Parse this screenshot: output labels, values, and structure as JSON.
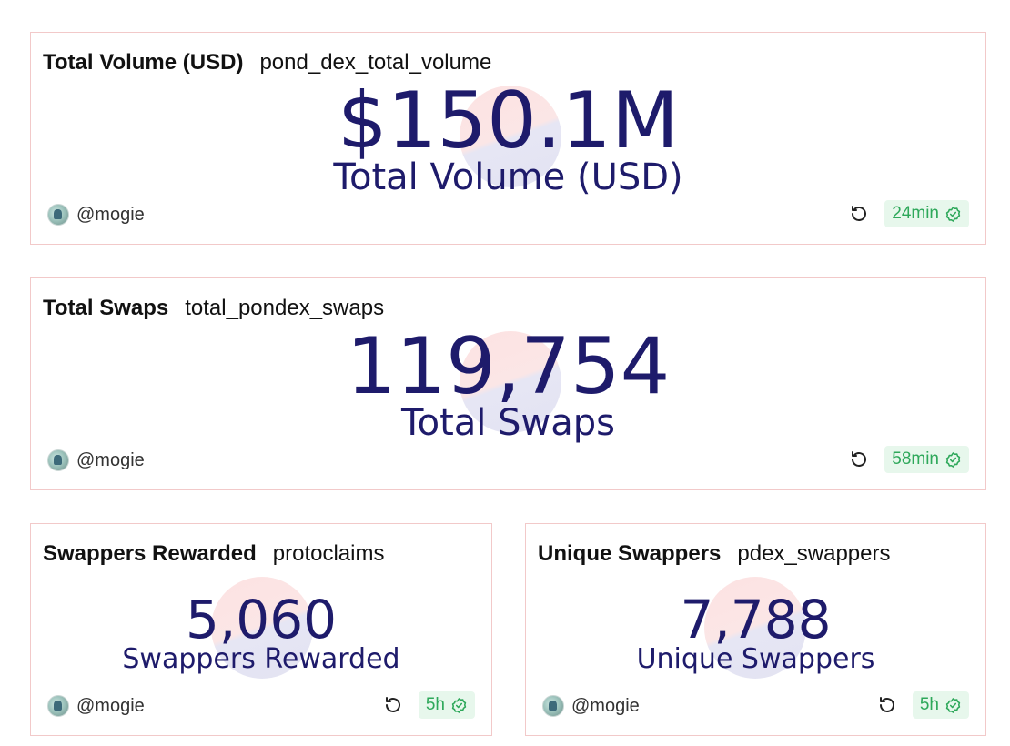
{
  "cards": [
    {
      "title": "Total Volume (USD)",
      "query": "pond_dex_total_volume",
      "value": "$150.1M",
      "label": "Total Volume (USD)",
      "author": "@mogie",
      "refresh_age": "24min"
    },
    {
      "title": "Total Swaps",
      "query": "total_pondex_swaps",
      "value": "119,754",
      "label": "Total Swaps",
      "author": "@mogie",
      "refresh_age": "58min"
    },
    {
      "title": "Swappers Rewarded",
      "query": "protoclaims",
      "value": "5,060",
      "label": "Swappers Rewarded",
      "author": "@mogie",
      "refresh_age": "5h"
    },
    {
      "title": "Unique Swappers",
      "query": "pdex_swappers",
      "value": "7,788",
      "label": "Unique Swappers",
      "author": "@mogie",
      "refresh_age": "5h"
    }
  ],
  "icons": {
    "refresh": "refresh-icon",
    "verified": "check-circle-icon",
    "avatar": "avatar"
  },
  "colors": {
    "value_text": "#1e1b6b",
    "card_border": "#f2c9c9",
    "badge_bg": "#e7f7ec",
    "badge_text": "#2ea85a"
  }
}
